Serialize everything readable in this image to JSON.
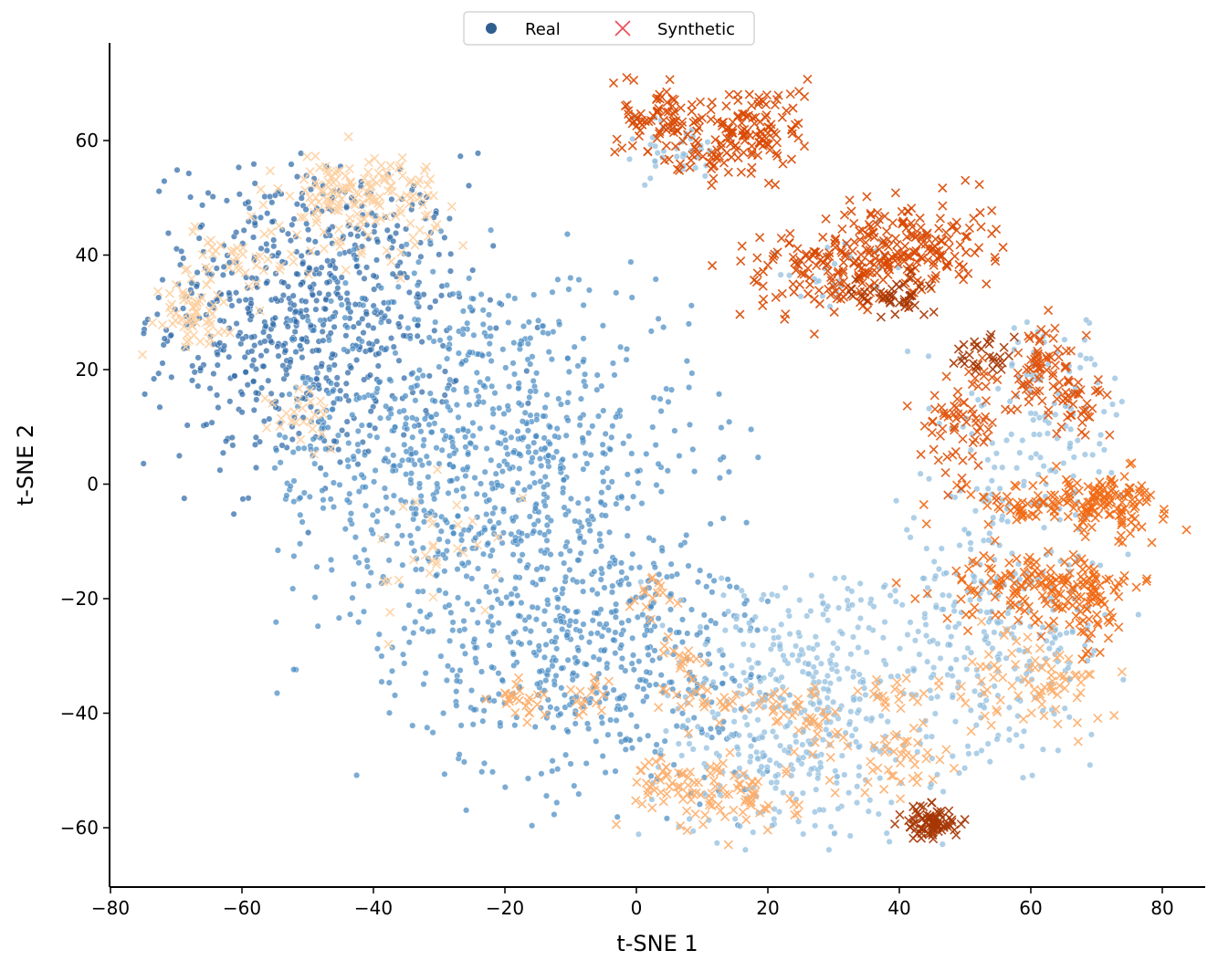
{
  "chart_data": {
    "type": "scatter",
    "title": "",
    "xlabel": "t-SNE 1",
    "ylabel": "t-SNE 2",
    "xlim": [
      -81,
      86
    ],
    "ylim": [
      -70,
      77
    ],
    "x_ticks": [
      -80,
      -60,
      -40,
      -20,
      0,
      20,
      40,
      60,
      80
    ],
    "y_ticks": [
      -60,
      -40,
      -20,
      0,
      20,
      40,
      60
    ],
    "x_tick_labels": [
      "−80",
      "−60",
      "−40",
      "−20",
      "0",
      "20",
      "40",
      "60",
      "80"
    ],
    "y_tick_labels": [
      "−60",
      "−40",
      "−20",
      "0",
      "20",
      "40",
      "60"
    ],
    "grid": false,
    "legend": {
      "placement": "top-center",
      "entries": [
        {
          "label": "Real",
          "marker": "circle",
          "color": "#2f5f8f"
        },
        {
          "label": "Synthetic",
          "marker": "x",
          "color": "#e8505b"
        }
      ]
    },
    "colors": {
      "real_dark": "#2e6aa8",
      "real_mid": "#4a8cc4",
      "real_light": "#8fbcde",
      "syn_pale": "#fdd0a2",
      "syn_light": "#fdae6b",
      "syn_mid": "#f16913",
      "syn_orange": "#e0530c",
      "syn_dark": "#d94801",
      "syn_darkest": "#a63603"
    },
    "real_clusters": [
      {
        "shade": "real_dark",
        "cx": -50,
        "cy": 30,
        "sx": 12,
        "sy": 14,
        "n": 700,
        "region": [
          [
            -75,
            -15
          ],
          [
            -10,
            58
          ]
        ]
      },
      {
        "shade": "real_mid",
        "cx": -25,
        "cy": 5,
        "sx": 17,
        "sy": 17,
        "n": 900,
        "region": [
          [
            -55,
            20
          ],
          [
            -40,
            45
          ]
        ]
      },
      {
        "shade": "real_mid",
        "cx": -5,
        "cy": -30,
        "sx": 14,
        "sy": 12,
        "n": 500,
        "region": [
          [
            -45,
            20
          ],
          [
            -60,
            0
          ]
        ]
      },
      {
        "shade": "real_light",
        "cx": 25,
        "cy": -40,
        "sx": 12,
        "sy": 13,
        "n": 450,
        "region": [
          [
            0,
            50
          ],
          [
            -64,
            -15
          ]
        ]
      },
      {
        "shade": "real_light",
        "cx": 55,
        "cy": -25,
        "sx": 9,
        "sy": 12,
        "n": 300,
        "region": [
          [
            35,
            80
          ],
          [
            -55,
            5
          ]
        ]
      },
      {
        "shade": "real_light",
        "cx": 62,
        "cy": 12,
        "sx": 7,
        "sy": 9,
        "n": 120,
        "region": [
          [
            40,
            80
          ],
          [
            -5,
            30
          ]
        ]
      },
      {
        "shade": "real_light",
        "cx": 5,
        "cy": 58,
        "sx": 4,
        "sy": 3,
        "n": 40,
        "region": [
          [
            -2,
            15
          ],
          [
            52,
            65
          ]
        ]
      },
      {
        "shade": "real_light",
        "cx": 30,
        "cy": 38,
        "sx": 6,
        "sy": 4,
        "n": 30,
        "region": [
          [
            20,
            45
          ],
          [
            30,
            46
          ]
        ]
      }
    ],
    "synthetic_clusters": [
      {
        "shade": "syn_pale",
        "cx": -42,
        "cy": 50,
        "sx": 6,
        "sy": 4,
        "n": 160
      },
      {
        "shade": "syn_pale",
        "cx": -68,
        "cy": 30,
        "sx": 3,
        "sy": 3,
        "n": 60
      },
      {
        "shade": "syn_pale",
        "cx": -60,
        "cy": 40,
        "sx": 4,
        "sy": 3,
        "n": 40
      },
      {
        "shade": "syn_pale",
        "cx": -50,
        "cy": 12,
        "sx": 3,
        "sy": 3,
        "n": 25
      },
      {
        "shade": "syn_pale",
        "cx": -30,
        "cy": -12,
        "sx": 6,
        "sy": 6,
        "n": 30
      },
      {
        "shade": "syn_light",
        "cx": -18,
        "cy": -38,
        "sx": 2,
        "sy": 2,
        "n": 25
      },
      {
        "shade": "syn_light",
        "cx": 3,
        "cy": -20,
        "sx": 2,
        "sy": 2,
        "n": 15
      },
      {
        "shade": "syn_light",
        "cx": 7,
        "cy": -30,
        "sx": 2,
        "sy": 2,
        "n": 15
      },
      {
        "shade": "syn_light",
        "cx": 15,
        "cy": -38,
        "sx": 5,
        "sy": 2,
        "n": 40
      },
      {
        "shade": "syn_light",
        "cx": 15,
        "cy": -55,
        "sx": 5,
        "sy": 3,
        "n": 70
      },
      {
        "shade": "syn_light",
        "cx": 5,
        "cy": -52,
        "sx": 4,
        "sy": 2,
        "n": 40
      },
      {
        "shade": "syn_light",
        "cx": 27,
        "cy": -42,
        "sx": 3,
        "sy": 3,
        "n": 30
      },
      {
        "shade": "syn_light",
        "cx": 40,
        "cy": -48,
        "sx": 4,
        "sy": 3,
        "n": 40
      },
      {
        "shade": "syn_light",
        "cx": 40,
        "cy": -37,
        "sx": 3,
        "sy": 2,
        "n": 20
      },
      {
        "shade": "syn_light",
        "cx": 55,
        "cy": -35,
        "sx": 4,
        "sy": 4,
        "n": 40
      },
      {
        "shade": "syn_light",
        "cx": 65,
        "cy": -35,
        "sx": 3,
        "sy": 4,
        "n": 40
      },
      {
        "shade": "syn_light",
        "cx": -8,
        "cy": -38,
        "sx": 2,
        "sy": 2,
        "n": 15
      },
      {
        "shade": "syn_mid",
        "cx": 58,
        "cy": -18,
        "sx": 6,
        "sy": 3,
        "n": 100
      },
      {
        "shade": "syn_mid",
        "cx": 68,
        "cy": -18,
        "sx": 4,
        "sy": 3,
        "n": 60
      },
      {
        "shade": "syn_mid",
        "cx": 70,
        "cy": -25,
        "sx": 2,
        "sy": 4,
        "n": 30
      },
      {
        "shade": "syn_mid",
        "cx": 65,
        "cy": -3,
        "sx": 8,
        "sy": 2,
        "n": 120
      },
      {
        "shade": "syn_mid",
        "cx": 73,
        "cy": -4,
        "sx": 3,
        "sy": 3,
        "n": 50
      },
      {
        "shade": "syn_orange",
        "cx": 50,
        "cy": 12,
        "sx": 3,
        "sy": 5,
        "n": 70
      },
      {
        "shade": "syn_orange",
        "cx": 62,
        "cy": 20,
        "sx": 3,
        "sy": 4,
        "n": 80
      },
      {
        "shade": "syn_orange",
        "cx": 68,
        "cy": 14,
        "sx": 2,
        "sy": 2,
        "n": 25
      },
      {
        "shade": "syn_dark",
        "cx": 30,
        "cy": 37,
        "sx": 7,
        "sy": 4,
        "n": 150
      },
      {
        "shade": "syn_dark",
        "cx": 42,
        "cy": 42,
        "sx": 6,
        "sy": 4,
        "n": 150
      },
      {
        "shade": "syn_dark",
        "cx": 4,
        "cy": 64,
        "sx": 3,
        "sy": 3,
        "n": 70
      },
      {
        "shade": "syn_dark",
        "cx": 18,
        "cy": 62,
        "sx": 4,
        "sy": 4,
        "n": 120
      },
      {
        "shade": "syn_dark",
        "cx": 10,
        "cy": 56,
        "sx": 3,
        "sy": 2,
        "n": 30
      },
      {
        "shade": "syn_darkest",
        "cx": 45,
        "cy": -59,
        "sx": 2,
        "sy": 1.5,
        "n": 80
      },
      {
        "shade": "syn_darkest",
        "cx": 40,
        "cy": 33,
        "sx": 3,
        "sy": 2,
        "n": 40
      },
      {
        "shade": "syn_darkest",
        "cx": 52,
        "cy": 22,
        "sx": 2,
        "sy": 2,
        "n": 30
      }
    ]
  }
}
